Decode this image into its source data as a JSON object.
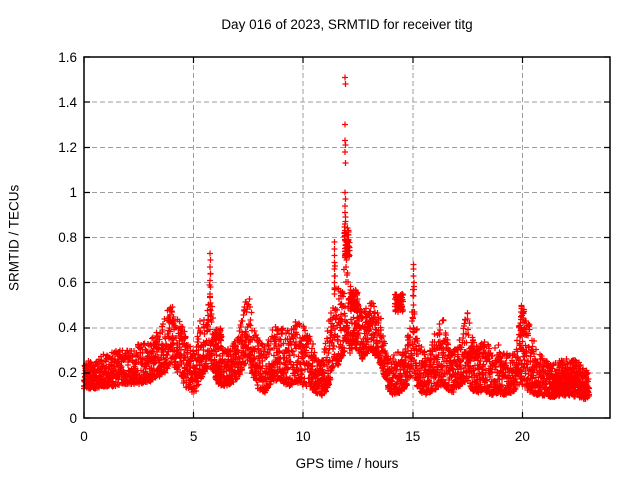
{
  "chart_data": {
    "type": "scatter",
    "title": "Day 016 of 2023, SRMTID for receiver titg",
    "xlabel": "GPS time / hours",
    "ylabel": "SRMTID / TECUs",
    "series_name": "SRMTID",
    "xlim": [
      0,
      24
    ],
    "ylim": [
      0,
      1.6
    ],
    "xticks": [
      0,
      5,
      10,
      15,
      20
    ],
    "yticks": [
      0,
      0.2,
      0.4,
      0.6,
      0.8,
      1,
      1.2,
      1.4,
      1.6
    ],
    "grid": {
      "show": true,
      "style": "dashed",
      "color": "#9e9e9e"
    },
    "border_color": "#000000",
    "marker": {
      "shape": "plus",
      "color": "#ff0000",
      "size": 7
    },
    "sampling": {
      "t_start": 0,
      "t_end": 23.05,
      "dt": 0.012,
      "passes": 2,
      "seed": 1337,
      "low_bias": 1.35,
      "t_jitter": 0.024
    },
    "envelope": [
      [
        0.0,
        0.13,
        0.25
      ],
      [
        0.5,
        0.13,
        0.26
      ],
      [
        1.0,
        0.14,
        0.29
      ],
      [
        1.5,
        0.14,
        0.3
      ],
      [
        2.0,
        0.15,
        0.3
      ],
      [
        2.5,
        0.15,
        0.33
      ],
      [
        3.0,
        0.16,
        0.34
      ],
      [
        3.4,
        0.18,
        0.4
      ],
      [
        3.7,
        0.2,
        0.46
      ],
      [
        3.95,
        0.24,
        0.54
      ],
      [
        4.2,
        0.22,
        0.47
      ],
      [
        4.5,
        0.16,
        0.4
      ],
      [
        4.8,
        0.11,
        0.33
      ],
      [
        5.1,
        0.12,
        0.3
      ],
      [
        5.25,
        0.15,
        0.43
      ],
      [
        5.45,
        0.2,
        0.47
      ],
      [
        5.68,
        0.22,
        0.5
      ],
      [
        5.76,
        0.28,
        0.73
      ],
      [
        5.85,
        0.22,
        0.48
      ],
      [
        6.05,
        0.15,
        0.32
      ],
      [
        6.35,
        0.14,
        0.3
      ],
      [
        6.7,
        0.15,
        0.31
      ],
      [
        7.0,
        0.17,
        0.37
      ],
      [
        7.25,
        0.22,
        0.46
      ],
      [
        7.52,
        0.27,
        0.58
      ],
      [
        7.7,
        0.18,
        0.43
      ],
      [
        7.95,
        0.13,
        0.35
      ],
      [
        8.25,
        0.11,
        0.32
      ],
      [
        8.6,
        0.16,
        0.4
      ],
      [
        8.9,
        0.17,
        0.43
      ],
      [
        9.15,
        0.15,
        0.4
      ],
      [
        9.4,
        0.14,
        0.38
      ],
      [
        9.6,
        0.16,
        0.45
      ],
      [
        9.85,
        0.15,
        0.42
      ],
      [
        10.1,
        0.14,
        0.4
      ],
      [
        10.35,
        0.13,
        0.36
      ],
      [
        10.6,
        0.11,
        0.3
      ],
      [
        10.85,
        0.1,
        0.28
      ],
      [
        11.1,
        0.12,
        0.38
      ],
      [
        11.35,
        0.22,
        0.55
      ],
      [
        11.43,
        0.28,
        0.78
      ],
      [
        11.55,
        0.22,
        0.58
      ],
      [
        11.7,
        0.25,
        0.62
      ],
      [
        11.85,
        0.28,
        0.66
      ],
      [
        11.95,
        0.32,
        0.72
      ],
      [
        12.1,
        0.28,
        0.6
      ],
      [
        12.3,
        0.32,
        0.55
      ],
      [
        12.5,
        0.3,
        0.52
      ],
      [
        12.7,
        0.26,
        0.48
      ],
      [
        12.9,
        0.28,
        0.5
      ],
      [
        13.1,
        0.3,
        0.52
      ],
      [
        13.35,
        0.27,
        0.49
      ],
      [
        13.6,
        0.22,
        0.44
      ],
      [
        13.85,
        0.13,
        0.3
      ],
      [
        14.1,
        0.1,
        0.28
      ],
      [
        14.4,
        0.11,
        0.3
      ],
      [
        14.7,
        0.14,
        0.34
      ],
      [
        14.95,
        0.18,
        0.44
      ],
      [
        15.03,
        0.22,
        0.68
      ],
      [
        15.15,
        0.15,
        0.42
      ],
      [
        15.4,
        0.11,
        0.32
      ],
      [
        15.7,
        0.1,
        0.28
      ],
      [
        15.95,
        0.12,
        0.36
      ],
      [
        16.2,
        0.14,
        0.46
      ],
      [
        16.45,
        0.14,
        0.43
      ],
      [
        16.7,
        0.11,
        0.3
      ],
      [
        17.0,
        0.12,
        0.31
      ],
      [
        17.25,
        0.15,
        0.4
      ],
      [
        17.5,
        0.16,
        0.48
      ],
      [
        17.75,
        0.12,
        0.35
      ],
      [
        18.0,
        0.11,
        0.31
      ],
      [
        18.3,
        0.12,
        0.36
      ],
      [
        18.6,
        0.1,
        0.29
      ],
      [
        18.9,
        0.11,
        0.33
      ],
      [
        19.2,
        0.1,
        0.28
      ],
      [
        19.5,
        0.11,
        0.3
      ],
      [
        19.75,
        0.13,
        0.35
      ],
      [
        19.95,
        0.15,
        0.5
      ],
      [
        20.15,
        0.13,
        0.45
      ],
      [
        20.4,
        0.11,
        0.4
      ],
      [
        20.65,
        0.1,
        0.3
      ],
      [
        21.0,
        0.1,
        0.26
      ],
      [
        21.4,
        0.09,
        0.24
      ],
      [
        21.8,
        0.1,
        0.26
      ],
      [
        22.2,
        0.1,
        0.27
      ],
      [
        22.6,
        0.09,
        0.25
      ],
      [
        23.0,
        0.08,
        0.21
      ],
      [
        23.05,
        0.09,
        0.19
      ]
    ],
    "patches": [
      [
        0.0,
        0.35,
        0.15,
        0.24,
        25
      ],
      [
        5.95,
        6.3,
        0.3,
        0.4,
        45
      ],
      [
        11.88,
        12.12,
        0.7,
        0.85,
        55
      ],
      [
        12.15,
        12.5,
        0.47,
        0.57,
        50
      ],
      [
        14.18,
        14.62,
        0.46,
        0.56,
        55
      ],
      [
        17.58,
        17.95,
        0.26,
        0.32,
        30
      ],
      [
        19.88,
        20.1,
        0.3,
        0.5,
        25
      ],
      [
        21.2,
        23.0,
        0.11,
        0.2,
        160
      ]
    ],
    "extra_points": [
      [
        11.92,
        1.51
      ],
      [
        11.93,
        1.48
      ],
      [
        11.92,
        1.3
      ],
      [
        11.92,
        1.23
      ],
      [
        11.93,
        1.21
      ],
      [
        11.92,
        1.18
      ],
      [
        11.93,
        1.13
      ],
      [
        11.92,
        1.0
      ],
      [
        11.93,
        0.97
      ],
      [
        11.92,
        0.94
      ],
      [
        11.92,
        0.91
      ],
      [
        11.93,
        0.89
      ],
      [
        11.94,
        0.87
      ],
      [
        11.91,
        0.86
      ],
      [
        5.76,
        0.73
      ],
      [
        5.77,
        0.7
      ],
      [
        5.76,
        0.67
      ],
      [
        5.77,
        0.64
      ],
      [
        5.76,
        0.61
      ],
      [
        5.77,
        0.58
      ],
      [
        5.76,
        0.55
      ],
      [
        5.77,
        0.51
      ],
      [
        5.76,
        0.48
      ],
      [
        5.77,
        0.45
      ],
      [
        11.43,
        0.78
      ],
      [
        11.44,
        0.75
      ],
      [
        11.43,
        0.72
      ],
      [
        11.44,
        0.69
      ],
      [
        11.42,
        0.66
      ],
      [
        11.44,
        0.63
      ],
      [
        11.43,
        0.6
      ],
      [
        11.42,
        0.57
      ],
      [
        15.03,
        0.68
      ],
      [
        15.04,
        0.66
      ],
      [
        15.03,
        0.63
      ],
      [
        15.05,
        0.6
      ],
      [
        15.02,
        0.57
      ],
      [
        15.04,
        0.54
      ],
      [
        15.03,
        0.5
      ],
      [
        15.05,
        0.47
      ],
      [
        15.02,
        0.44
      ]
    ]
  }
}
